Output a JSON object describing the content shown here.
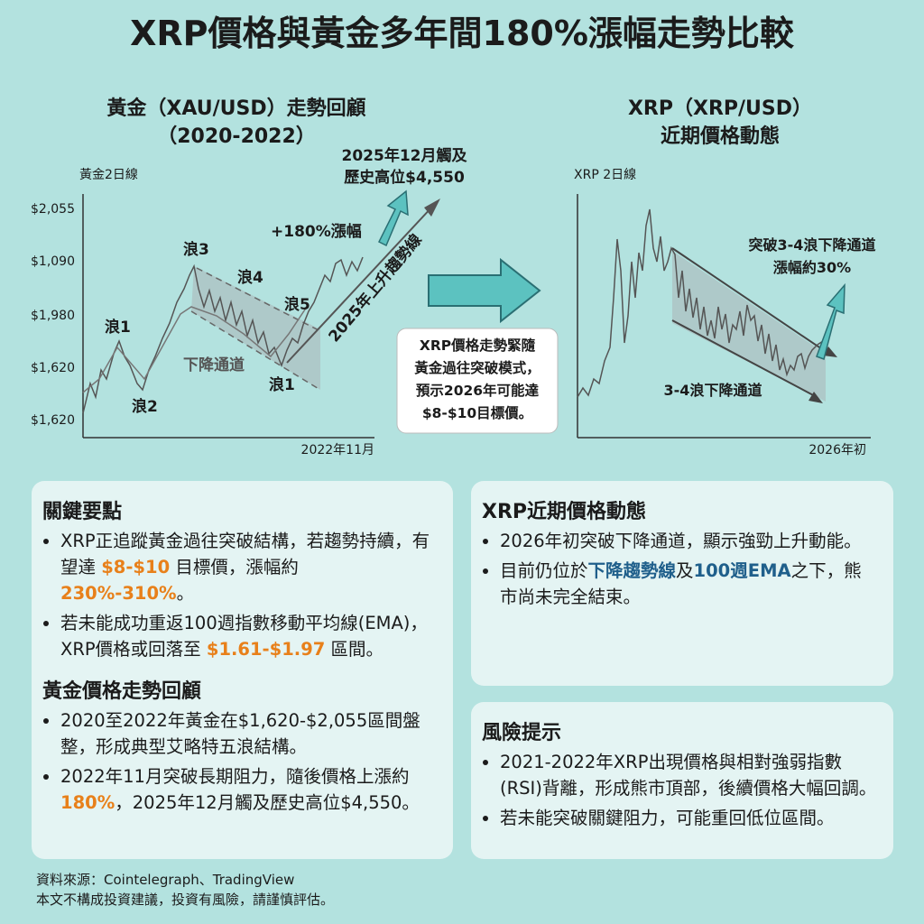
{
  "title": "XRP價格與黃金多年間180%漲幅走勢比較",
  "gold_panel": {
    "title_lines": [
      "黃金（XAU/USD）走勢回顧",
      "（2020-2022）"
    ],
    "axis_label": "黃金2日線",
    "y_labels": [
      "$2,055",
      "$1,090",
      "$1,980",
      "$1,620",
      "$1,620"
    ],
    "x_label": "2022年11月",
    "waves": [
      "浪1",
      "浪2",
      "浪3",
      "浪4",
      "浪5",
      "浪1"
    ],
    "channel_label": "下降通道",
    "gain_label": "+180%漲幅",
    "trend_label": "2025年上升趨勢線",
    "peak_lines": [
      "2025年12月觸及",
      "歷史高位$4,550"
    ]
  },
  "middle_note": [
    "XRP價格走勢緊隨",
    "黃金過往突破模式，",
    "預示2026年可能達",
    "$8-$10目標價。"
  ],
  "xrp_panel": {
    "title_lines": [
      "XRP（XRP/USD）",
      "近期價格動態"
    ],
    "axis_label": "XRP 2日線",
    "x_label": "2026年初",
    "breakout_lines": [
      "突破3-4浪下降通道",
      "漲幅約30%"
    ],
    "channel_label": "3-4浪下降通道"
  },
  "cards": [
    {
      "sections": [
        {
          "heading": "關鍵要點",
          "bullets": [
            [
              {
                "text": "XRP正追蹤黃金過往突破結構，若趨勢持續，有望達 "
              },
              {
                "text": "$8-$10",
                "color": "#e8801a"
              },
              {
                "text": " 目標價，漲幅約 "
              },
              {
                "text": "230%-310%",
                "color": "#e8801a"
              },
              {
                "text": "。"
              }
            ],
            [
              {
                "text": "若未能成功重返100週指數移動平均線(EMA)，XRP價格或回落至 "
              },
              {
                "text": "$1.61-$1.97",
                "color": "#e8801a"
              },
              {
                "text": " 區間。"
              }
            ]
          ]
        },
        {
          "heading": "黃金價格走勢回顧",
          "bullets": [
            [
              {
                "text": "2020至2022年黃金在$1,620-$2,055區間盤整，形成典型艾略特五浪結構。"
              }
            ],
            [
              {
                "text": "2022年11月突破長期阻力，隨後價格上漲約 "
              },
              {
                "text": "180%",
                "color": "#e8801a"
              },
              {
                "text": "，2025年12月觸及歷史高位$4,550。"
              }
            ]
          ]
        }
      ]
    },
    {
      "sections": [
        {
          "heading": "XRP近期價格動態",
          "bullets": [
            [
              {
                "text": "2026年初突破下降通道，顯示強勁上升動能。"
              }
            ],
            [
              {
                "text": "目前仍位於"
              },
              {
                "text": "下降趨勢線",
                "color": "#1f5f8b"
              },
              {
                "text": "及"
              },
              {
                "text": "100週EMA",
                "color": "#1f5f8b"
              },
              {
                "text": "之下，熊市尚未完全結束。"
              }
            ]
          ]
        }
      ]
    },
    {
      "sections": [
        {
          "heading": "風險提示",
          "bullets": [
            [
              {
                "text": "2021-2022年XRP出現價格與相對強弱指數(RSI)背離，形成熊市頂部，後續價格大幅回調。"
              }
            ],
            [
              {
                "text": "若未能突破關鍵阻力，可能重回低位區間。"
              }
            ]
          ]
        }
      ]
    }
  ],
  "footer": [
    "資料來源：Cointelegraph、TradingView",
    "本文不構成投資建議，投資有風險，請謹慎評估。"
  ]
}
